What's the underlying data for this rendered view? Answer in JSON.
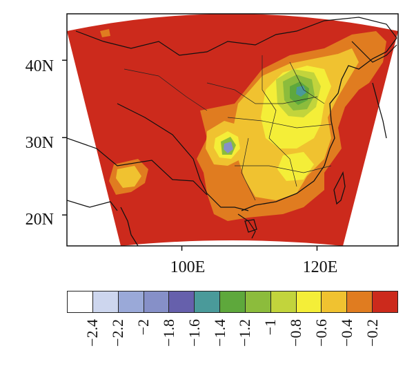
{
  "map": {
    "lat_ticks": [
      "40N",
      "30N",
      "20N"
    ],
    "lon_ticks": [
      "100E",
      "120E"
    ],
    "lat_tick_values": [
      40,
      30,
      20
    ],
    "lon_tick_values": [
      100,
      120
    ],
    "extent": {
      "lon_min": 83,
      "lon_max": 132,
      "lat_min": 16,
      "lat_max": 46
    }
  },
  "colorbar": {
    "labels": [
      "−2.4",
      "−2.2",
      "−2",
      "−1.8",
      "−1.6",
      "−1.4",
      "−1.2",
      "−1",
      "−0.8",
      "−0.6",
      "−0.4",
      "−0.2"
    ],
    "values": [
      -2.4,
      -2.2,
      -2.0,
      -1.8,
      -1.6,
      -1.4,
      -1.2,
      -1.0,
      -0.8,
      -0.6,
      -0.4,
      -0.2
    ],
    "colors": [
      "#ffffff",
      "#cdd6ee",
      "#9aa9d8",
      "#8690c8",
      "#6660ac",
      "#4a9a9a",
      "#5ea83c",
      "#8cbc3c",
      "#c2d43c",
      "#f4ee38",
      "#f0c230",
      "#e07c20",
      "#cc2a1c"
    ]
  },
  "colors": {
    "background_field": "#cc2a1c",
    "border_lines": "#111111"
  }
}
